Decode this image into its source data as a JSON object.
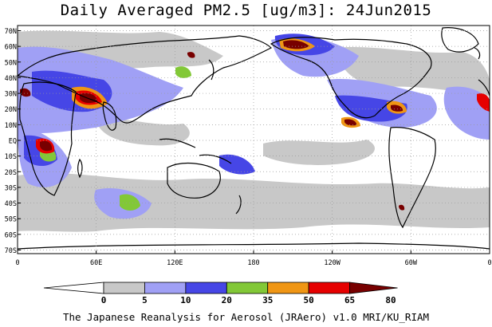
{
  "title": "Daily Averaged PM2.5 [ug/m3]: 24Jun2015",
  "footer": "The Japanese Reanalysis for Aerosol (JRAero) v1.0 MRI/KU_RIAM",
  "lat_labels": [
    "70N",
    "60N",
    "50N",
    "40N",
    "30N",
    "20N",
    "10N",
    "EQ",
    "10S",
    "20S",
    "30S",
    "40S",
    "50S",
    "60S",
    "70S"
  ],
  "lon_labels": [
    "0",
    "60E",
    "120E",
    "180",
    "120W",
    "60W",
    "0"
  ],
  "colorbar": {
    "labels": [
      "0",
      "5",
      "10",
      "20",
      "35",
      "50",
      "65",
      "80"
    ],
    "colors": [
      "#ffffff",
      "#c8c8c8",
      "#a0a0f5",
      "#4646e6",
      "#82c837",
      "#f09614",
      "#e60000",
      "#780000"
    ]
  },
  "colors": {
    "land_outline": "#000000",
    "grid": "#999999"
  }
}
